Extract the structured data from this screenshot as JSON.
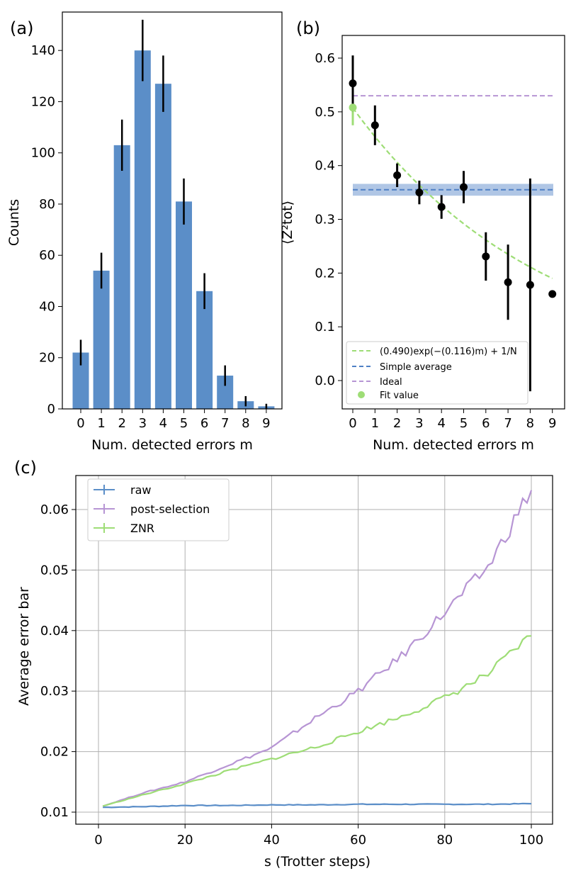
{
  "chart_data": [
    {
      "panel_label": "(a)",
      "type": "bar",
      "categories": [
        "0",
        "1",
        "2",
        "3",
        "4",
        "5",
        "6",
        "7",
        "8",
        "9"
      ],
      "values": [
        22,
        54,
        103,
        140,
        127,
        81,
        46,
        13,
        3,
        1
      ],
      "errors": [
        5,
        7,
        10,
        12,
        11,
        9,
        7,
        4,
        2,
        1
      ],
      "xlabel": "Num. detected errors m",
      "ylabel": "Counts",
      "ylim": [
        0,
        155
      ],
      "yticks": [
        "0",
        "20",
        "40",
        "60",
        "80",
        "100",
        "120",
        "140"
      ],
      "color": "#5b8ec8",
      "grid": false
    },
    {
      "panel_label": "(b)",
      "type": "scatter",
      "x": [
        0,
        1,
        2,
        3,
        4,
        5,
        6,
        7,
        8,
        9
      ],
      "y": [
        0.553,
        0.475,
        0.382,
        0.35,
        0.323,
        0.36,
        0.231,
        0.183,
        0.178,
        0.161
      ],
      "yerr": [
        0.052,
        0.037,
        0.022,
        0.022,
        0.022,
        0.03,
        0.045,
        0.07,
        0.198,
        0.0
      ],
      "fit": {
        "label": "(0.490)exp(−(0.116)m) + 1/N",
        "a": 0.49,
        "b": 0.116,
        "c": 0.0175,
        "color": "#9edd76"
      },
      "simple_average": {
        "label": "Simple average",
        "value": 0.355,
        "band": [
          0.344,
          0.366
        ],
        "color": "#4f80c5"
      },
      "ideal": {
        "label": "Ideal",
        "value": 0.53,
        "color": "#b795d4"
      },
      "fit_value": {
        "label": "Fit value",
        "x": 0,
        "y": 0.508,
        "yerr": 0.033,
        "color": "#9edd76"
      },
      "xlabel": "Num. detected errors m",
      "ylabel": "⟨Z²tot⟩",
      "xticks": [
        "0",
        "1",
        "2",
        "3",
        "4",
        "5",
        "6",
        "7",
        "8",
        "9"
      ],
      "yticks": [
        "0.0",
        "0.1",
        "0.2",
        "0.3",
        "0.4",
        "0.5",
        "0.6"
      ],
      "ylim": [
        -0.05,
        0.645
      ],
      "xlim": [
        -0.5,
        9.5
      ],
      "legend_position": "lower-left",
      "grid": false
    },
    {
      "panel_label": "(c)",
      "type": "line",
      "xlabel": "s (Trotter steps)",
      "ylabel": "Average error bar",
      "xlim": [
        -5,
        105
      ],
      "ylim": [
        0.0085,
        0.0665
      ],
      "xticks": [
        "0",
        "20",
        "40",
        "60",
        "80",
        "100"
      ],
      "yticks": [
        "0.01",
        "0.02",
        "0.03",
        "0.04",
        "0.05",
        "0.06"
      ],
      "legend_position": "top-left",
      "grid": true,
      "series": [
        {
          "name": "raw",
          "color": "#5b8ec8",
          "x": [
            1,
            10,
            20,
            30,
            40,
            50,
            60,
            70,
            80,
            90,
            100
          ],
          "y": [
            0.0108,
            0.0109,
            0.0111,
            0.0111,
            0.0112,
            0.0112,
            0.0113,
            0.0113,
            0.0113,
            0.0113,
            0.0114
          ]
        },
        {
          "name": "post-selection",
          "color": "#b795d4",
          "x": [
            1,
            10,
            20,
            30,
            40,
            50,
            60,
            70,
            80,
            90,
            100
          ],
          "y": [
            0.011,
            0.0131,
            0.015,
            0.0178,
            0.0206,
            0.0255,
            0.03,
            0.0358,
            0.043,
            0.0505,
            0.0633
          ]
        },
        {
          "name": "ZNR",
          "color": "#9edd76",
          "x": [
            1,
            10,
            20,
            30,
            40,
            50,
            60,
            70,
            80,
            90,
            100
          ],
          "y": [
            0.011,
            0.0128,
            0.0147,
            0.0168,
            0.0188,
            0.0207,
            0.0233,
            0.0258,
            0.0289,
            0.0328,
            0.0392
          ]
        }
      ]
    }
  ]
}
